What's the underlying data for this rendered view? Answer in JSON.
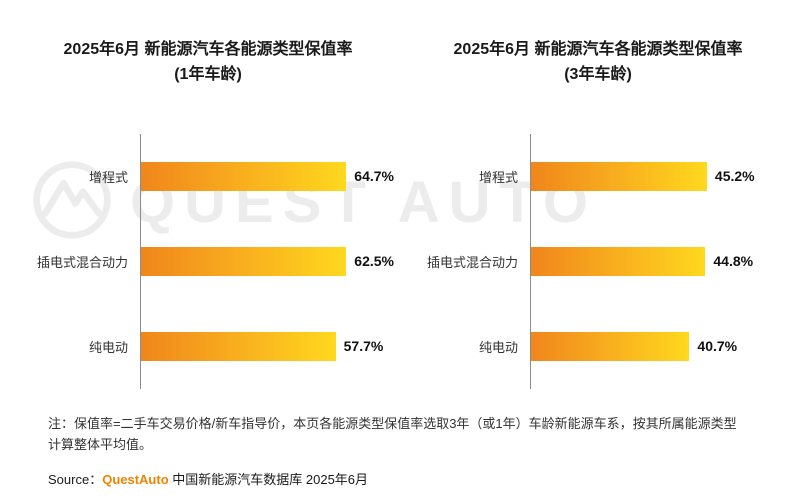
{
  "watermark": {
    "text": "QUEST AUTO"
  },
  "colors": {
    "bar_gradient_start": "#f0861c",
    "bar_gradient_end": "#ffd81e",
    "brand_orange": "#f08300",
    "watermark_gray": "#ececec",
    "axis_gray": "#8c8c8c"
  },
  "chart_data": [
    {
      "type": "bar",
      "orientation": "horizontal",
      "title_line1": "2025年6月 新能源汽车各能源类型保值率",
      "title_line2": "(1年车龄)",
      "categories": [
        "增程式",
        "插电式混合动力",
        "纯电动"
      ],
      "values": [
        64.7,
        62.5,
        57.7
      ],
      "value_labels": [
        "64.7%",
        "62.5%",
        "57.7%"
      ],
      "xlim": [
        0,
        75
      ],
      "grid": false,
      "legend": "none"
    },
    {
      "type": "bar",
      "orientation": "horizontal",
      "title_line1": "2025年6月 新能源汽车各能源类型保值率",
      "title_line2": "(3年车龄)",
      "categories": [
        "增程式",
        "插电式混合动力",
        "纯电动"
      ],
      "values": [
        45.2,
        44.8,
        40.7
      ],
      "value_labels": [
        "45.2%",
        "44.8%",
        "40.7%"
      ],
      "xlim": [
        0,
        65
      ],
      "grid": false,
      "legend": "none"
    }
  ],
  "note": {
    "line1": "注：保值率=二手车交易价格/新车指导价，本页各能源类型保值率选取3年（或1年）车龄新能源车系，按其所属能源类型",
    "line2": "计算整体平均值。"
  },
  "source": {
    "prefix": "Source：",
    "brand": "QuestAuto",
    "rest": " 中国新能源汽车数据库 2025年6月"
  }
}
